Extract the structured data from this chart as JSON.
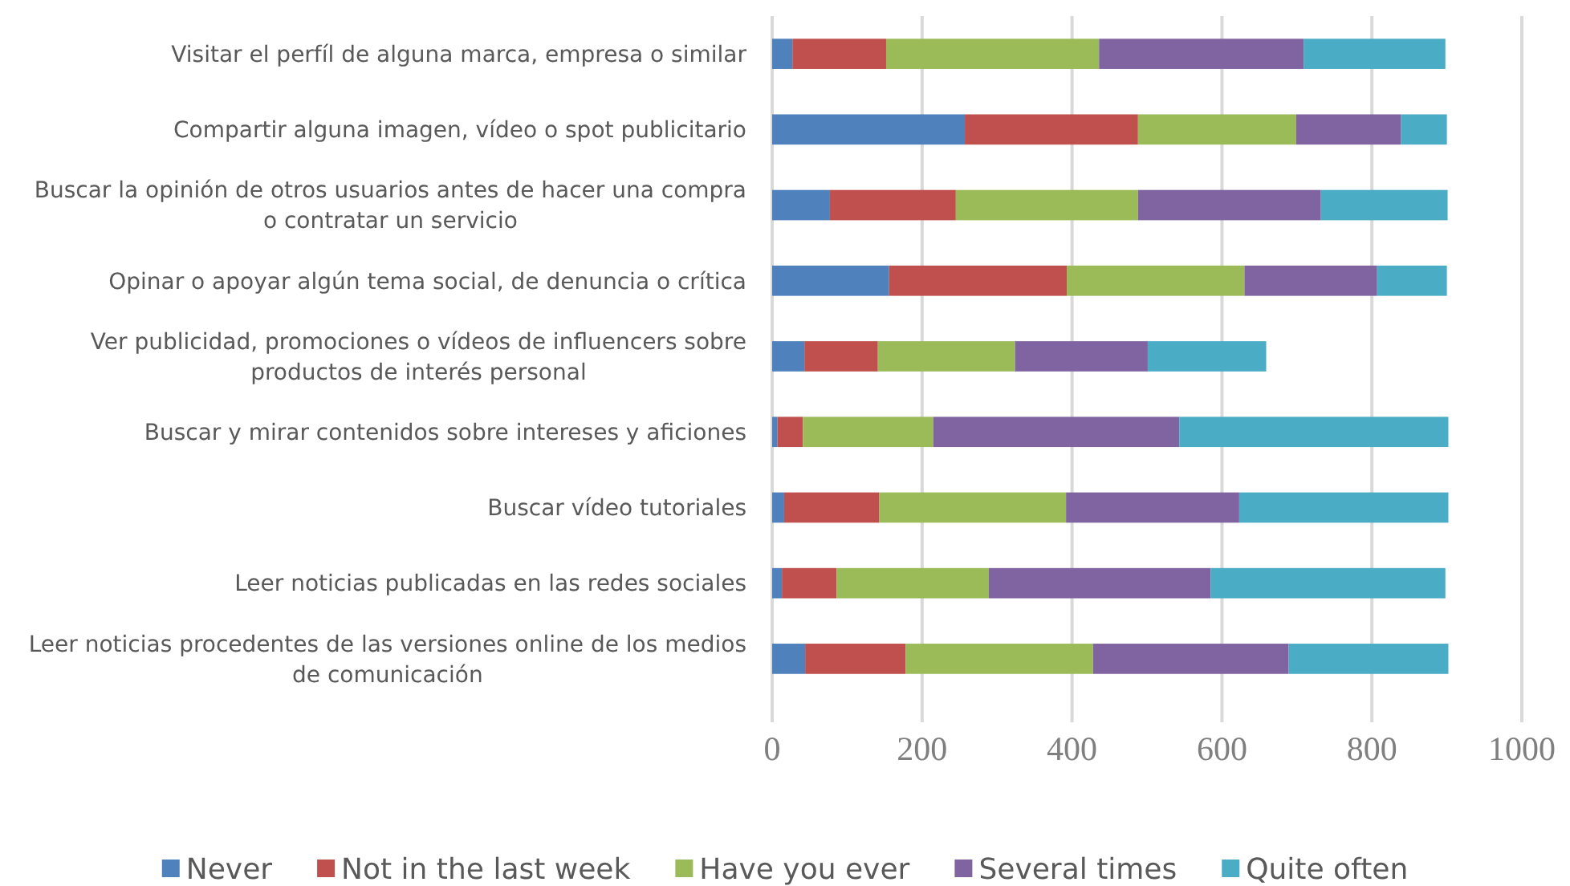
{
  "chart_data": {
    "type": "bar",
    "orientation": "horizontal",
    "stacked": true,
    "categories": [
      "Visitar el perfíl de alguna marca, empresa o similar",
      "Compartir alguna imagen, vídeo o spot publicitario",
      "Buscar la opinión de otros usuarios antes de hacer una compra o contratar un servicio",
      "Opinar o apoyar algún tema social, de denuncia o crítica",
      "Ver publicidad, promociones o vídeos de influencers sobre productos de interés personal",
      "Buscar y mirar contenidos sobre intereses y aficiones",
      "Buscar vídeo tutoriales",
      "Leer noticias publicadas en las redes sociales",
      "Leer noticias procedentes de las versiones online de los medios de comunicación"
    ],
    "series": [
      {
        "name": "Never",
        "color": "#4f81bd",
        "values": [
          27,
          257,
          77,
          156,
          43,
          7,
          16,
          13,
          44
        ]
      },
      {
        "name": "Not in the last week",
        "color": "#c0504d",
        "values": [
          125,
          231,
          168,
          237,
          98,
          34,
          127,
          73,
          134
        ]
      },
      {
        "name": "Have you ever",
        "color": "#9bbb59",
        "values": [
          284,
          211,
          243,
          237,
          183,
          174,
          249,
          203,
          250
        ]
      },
      {
        "name": "Several times",
        "color": "#8064a2",
        "values": [
          273,
          140,
          244,
          177,
          177,
          328,
          231,
          296,
          261
        ]
      },
      {
        "name": "Quite often",
        "color": "#4bacc6",
        "values": [
          189,
          61,
          169,
          93,
          158,
          359,
          279,
          313,
          213
        ]
      }
    ],
    "xlim": [
      0,
      1000
    ],
    "xticks": [
      0,
      200,
      400,
      600,
      800,
      1000
    ],
    "grid": "x",
    "legend": "bottom"
  }
}
